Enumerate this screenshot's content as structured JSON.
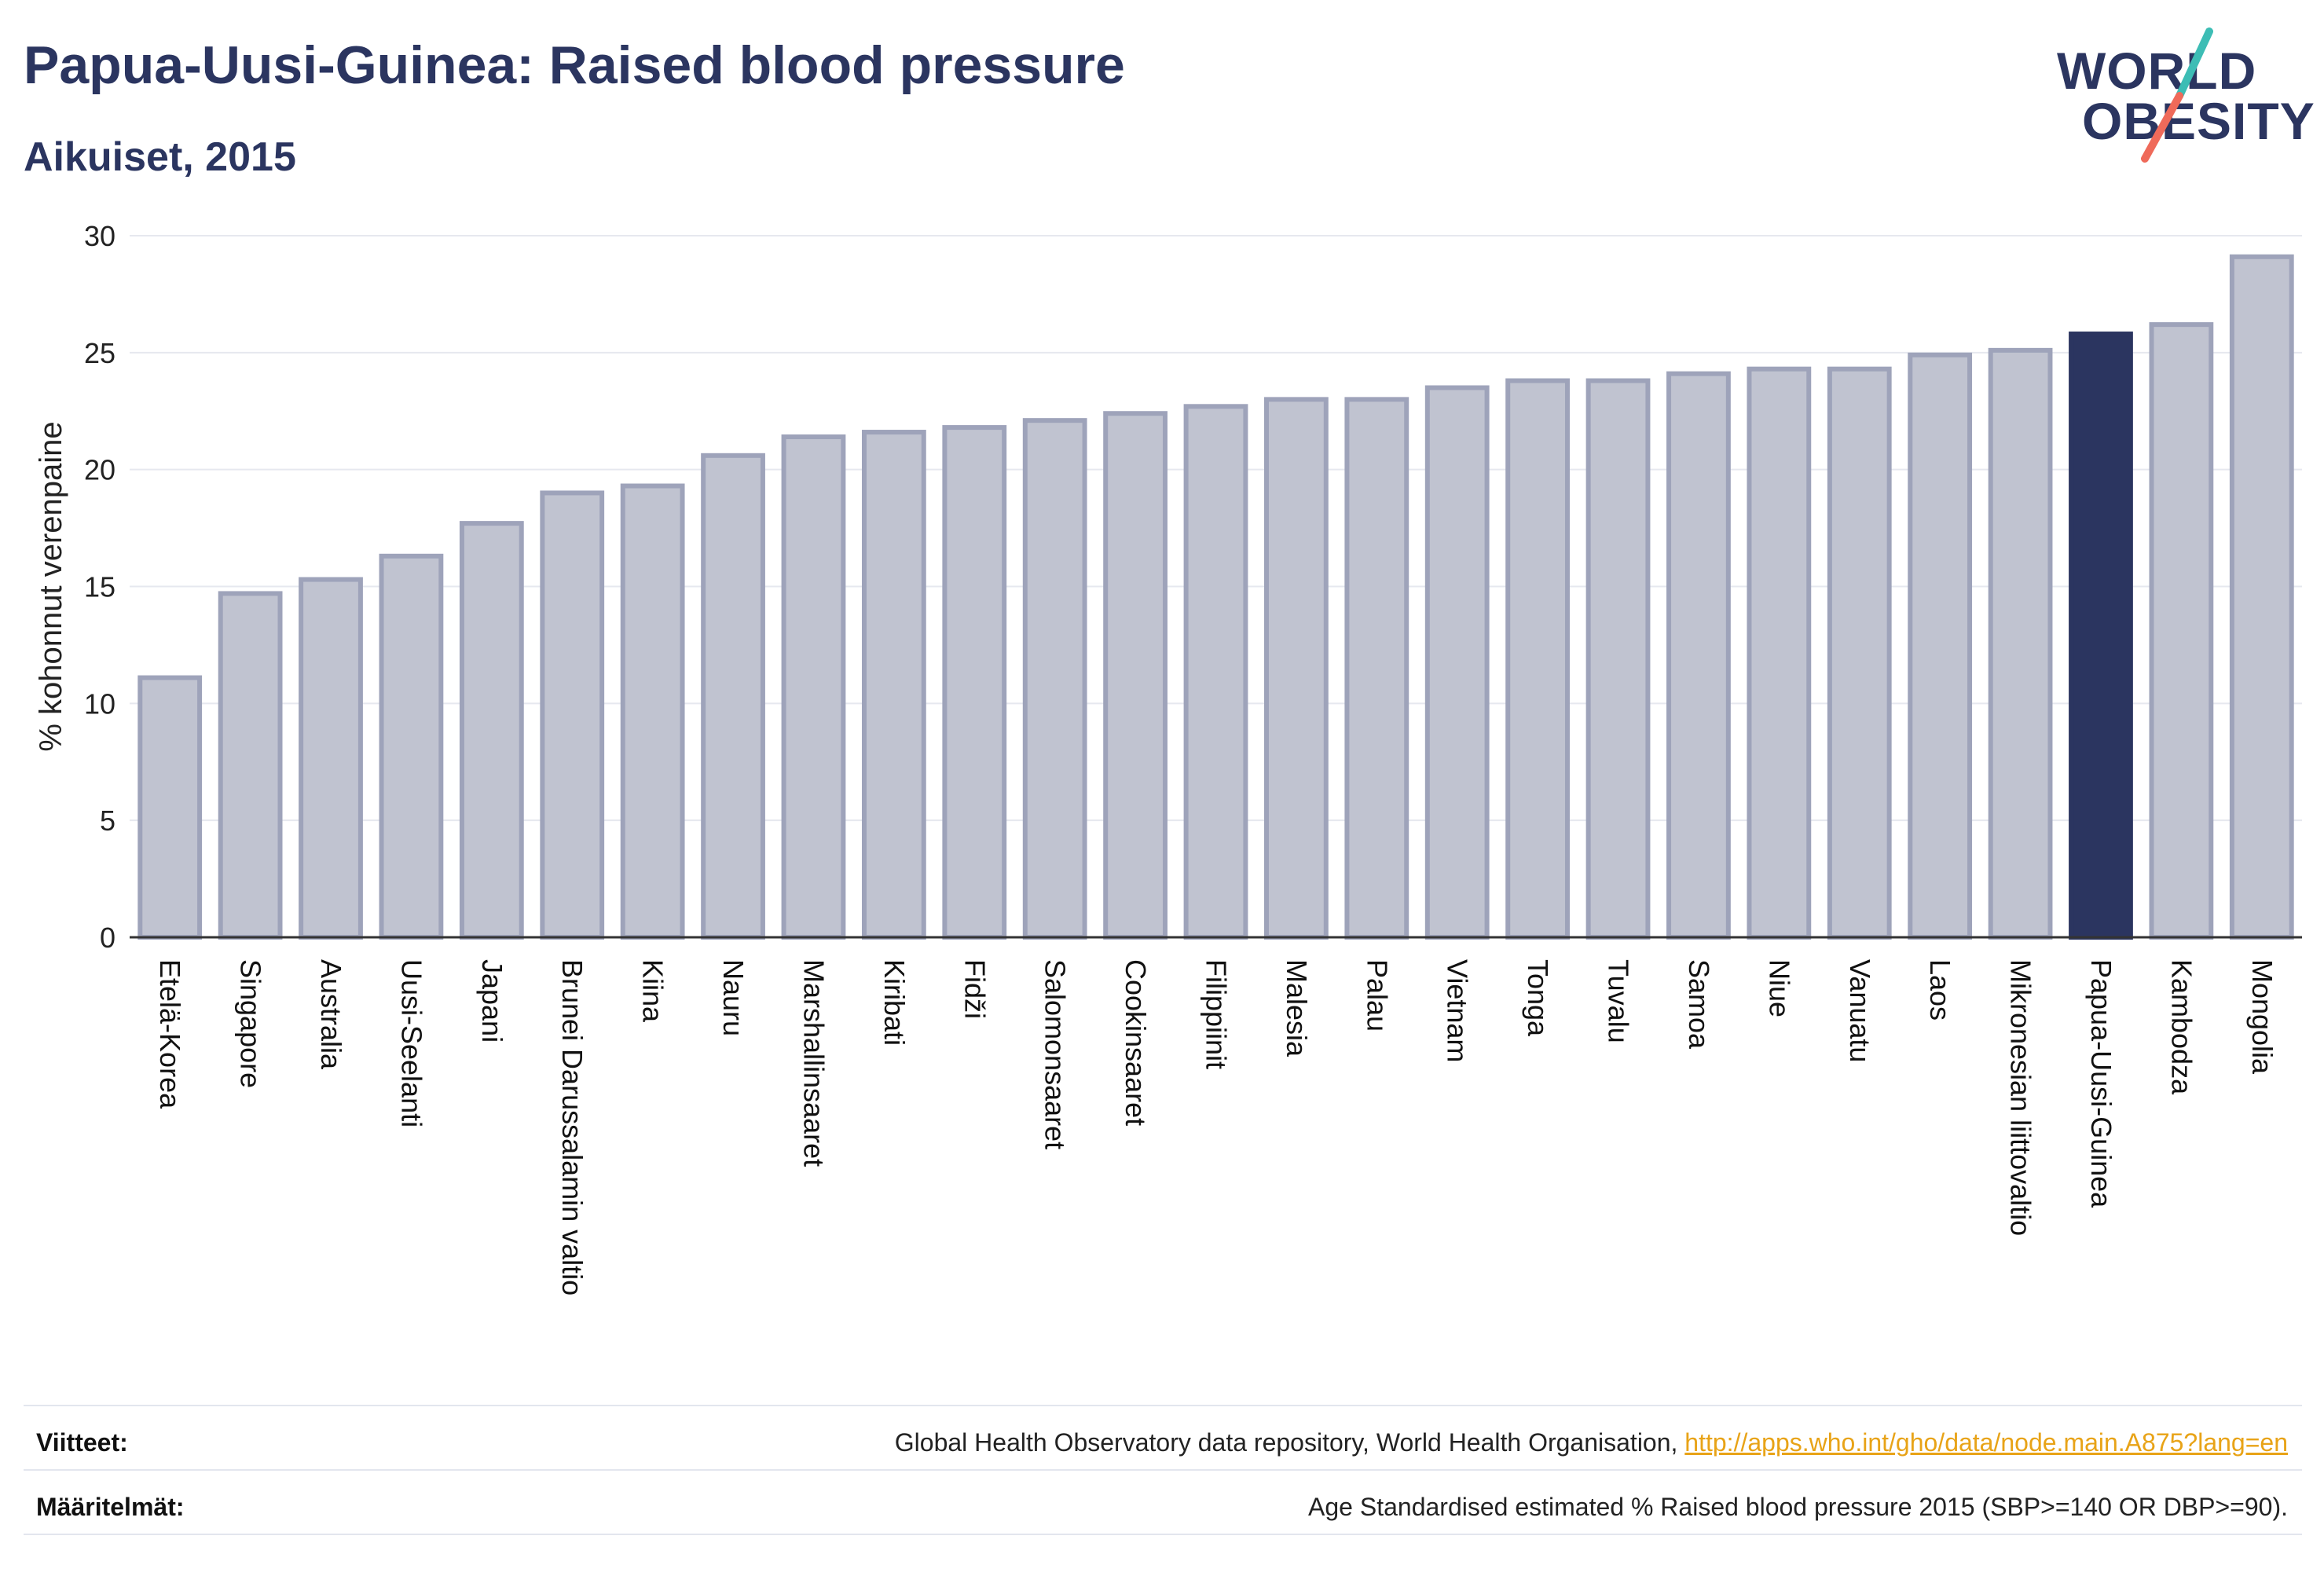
{
  "header": {
    "title": "Papua-Uusi-Guinea: Raised blood pressure",
    "subtitle": "Aikuiset, 2015"
  },
  "logo": {
    "line1": "WORLD",
    "line2": "OBESITY"
  },
  "colors": {
    "bar_fill": "#c0c3d0",
    "bar_stroke": "#9ea3ba",
    "highlight": "#2b3560",
    "text": "#2b3560",
    "grid": "#e6e8ef",
    "link": "#e8a317",
    "logo_teal": "#3dbdb5",
    "logo_coral": "#ef6a5a"
  },
  "chart_data": {
    "type": "bar",
    "title": "Papua-Uusi-Guinea: Raised blood pressure",
    "subtitle": "Aikuiset, 2015",
    "ylabel": "% kohonnut verenpaine",
    "xlabel": "",
    "ylim": [
      0,
      30
    ],
    "yticks": [
      0,
      5,
      10,
      15,
      20,
      25,
      30
    ],
    "grid": true,
    "highlight": "Papua-Uusi-Guinea",
    "categories": [
      "Etelä-Korea",
      "Singapore",
      "Australia",
      "Uusi-Seelanti",
      "Japani",
      "Brunei Darussalamin valtio",
      "Kiina",
      "Nauru",
      "Marshallinsaaret",
      "Kiribati",
      "Fidži",
      "Salomonsaaret",
      "Cookinsaaret",
      "Filippiinit",
      "Malesia",
      "Palau",
      "Vietnam",
      "Tonga",
      "Tuvalu",
      "Samoa",
      "Niue",
      "Vanuatu",
      "Laos",
      "Mikronesian liittovaltio",
      "Papua-Uusi-Guinea",
      "Kambodza",
      "Mongolia"
    ],
    "values": [
      11.1,
      14.7,
      15.3,
      16.3,
      17.7,
      19.0,
      19.3,
      20.6,
      21.4,
      21.6,
      21.8,
      22.1,
      22.4,
      22.7,
      23.0,
      23.0,
      23.5,
      23.8,
      23.8,
      24.1,
      24.3,
      24.3,
      24.9,
      25.1,
      25.8,
      26.2,
      29.1
    ]
  },
  "footer": {
    "sources_label": "Viitteet:",
    "sources_text": "Global Health Observatory data repository, World Health Organisation, ",
    "sources_link": "http://apps.who.int/gho/data/node.main.A875?lang=en",
    "definitions_label": "Määritelmät:",
    "definitions_text": "Age Standardised estimated % Raised blood pressure 2015 (SBP>=140 OR DBP>=90)."
  }
}
